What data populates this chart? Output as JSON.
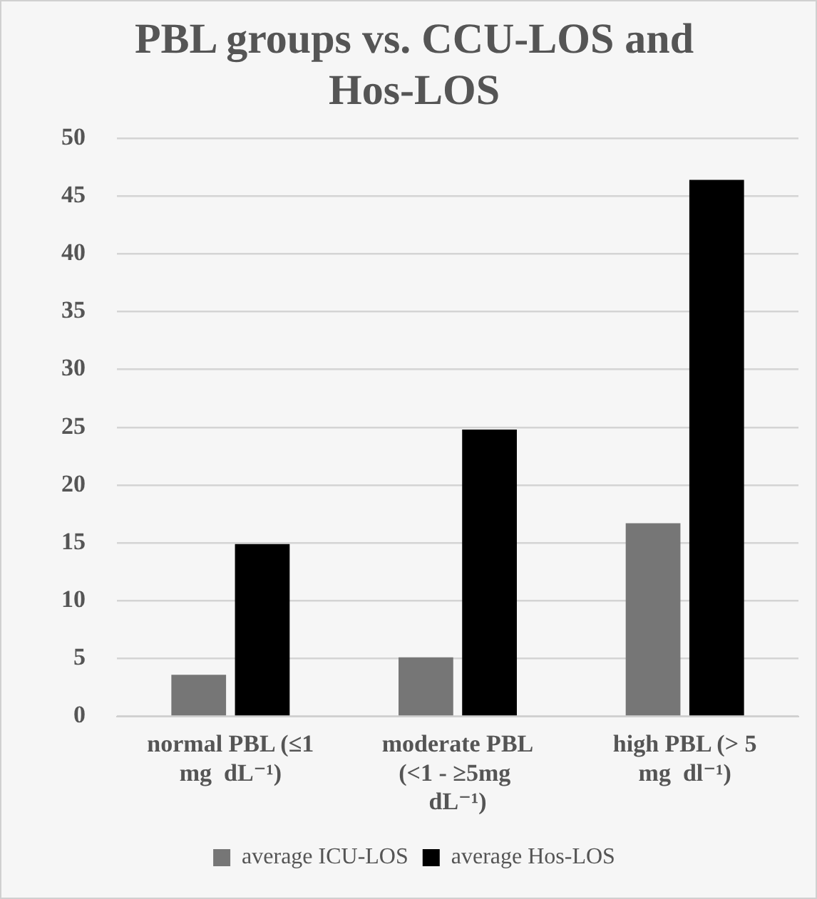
{
  "chart_data": {
    "type": "bar",
    "title": "PBL groups vs. CCU-LOS and Hos-LOS",
    "categories": [
      "normal PBL (≤1 mg  dL⁻¹)",
      "moderate PBL (<1 - ≥5mg  dL⁻¹)",
      "high PBL (> 5 mg  dl⁻¹)"
    ],
    "series": [
      {
        "name": "average ICU-LOS",
        "color": "#767676",
        "values": [
          3.6,
          5.1,
          16.7
        ]
      },
      {
        "name": "average Hos-LOS",
        "color": "#000000",
        "values": [
          14.9,
          24.8,
          46.4
        ]
      }
    ],
    "ylim": [
      0,
      50
    ],
    "yticks": [
      0,
      5,
      10,
      15,
      20,
      25,
      30,
      35,
      40,
      45,
      50
    ],
    "grid": "y",
    "legend": "bottom"
  }
}
